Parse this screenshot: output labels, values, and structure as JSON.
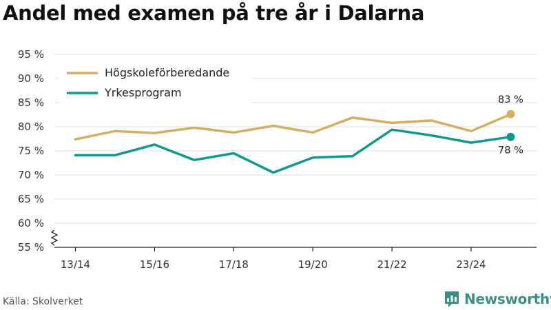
{
  "title": "Andel med examen på tre år i Dalarna",
  "source": "Källa: Skolverket",
  "brand": {
    "name": "Newsworthy",
    "logo_icon": "newsworthy-bar-chart-icon",
    "color": "#3e8e86"
  },
  "chart_data": {
    "type": "line",
    "title": "Andel med examen på tre år i Dalarna",
    "xlabel": "",
    "ylabel": "",
    "x": [
      "13/14",
      "14/15",
      "15/16",
      "16/17",
      "17/18",
      "18/19",
      "19/20",
      "20/21",
      "21/22",
      "22/23",
      "23/24",
      "24/25"
    ],
    "x_tick_labels": [
      "13/14",
      "15/16",
      "17/18",
      "19/20",
      "21/22",
      "23/24"
    ],
    "y_tick_labels": [
      "55 %",
      "60 %",
      "65 %",
      "70 %",
      "75 %",
      "80 %",
      "85 %",
      "90 %",
      "95 %"
    ],
    "ylim": [
      55,
      95
    ],
    "y_axis_break": true,
    "grid": true,
    "legend": "top-left",
    "series": [
      {
        "name": "Högskoleförberedande",
        "color": "#d4ae62",
        "values": [
          77.4,
          79.1,
          78.7,
          79.8,
          78.8,
          80.2,
          78.8,
          81.9,
          80.8,
          81.3,
          79.1,
          82.6
        ],
        "end_label": "83 %"
      },
      {
        "name": "Yrkesprogram",
        "color": "#12998f",
        "values": [
          74.1,
          74.1,
          76.3,
          73.1,
          74.5,
          70.5,
          73.6,
          73.9,
          79.4,
          78.2,
          76.7,
          77.9
        ],
        "end_label": "78 %"
      }
    ]
  }
}
